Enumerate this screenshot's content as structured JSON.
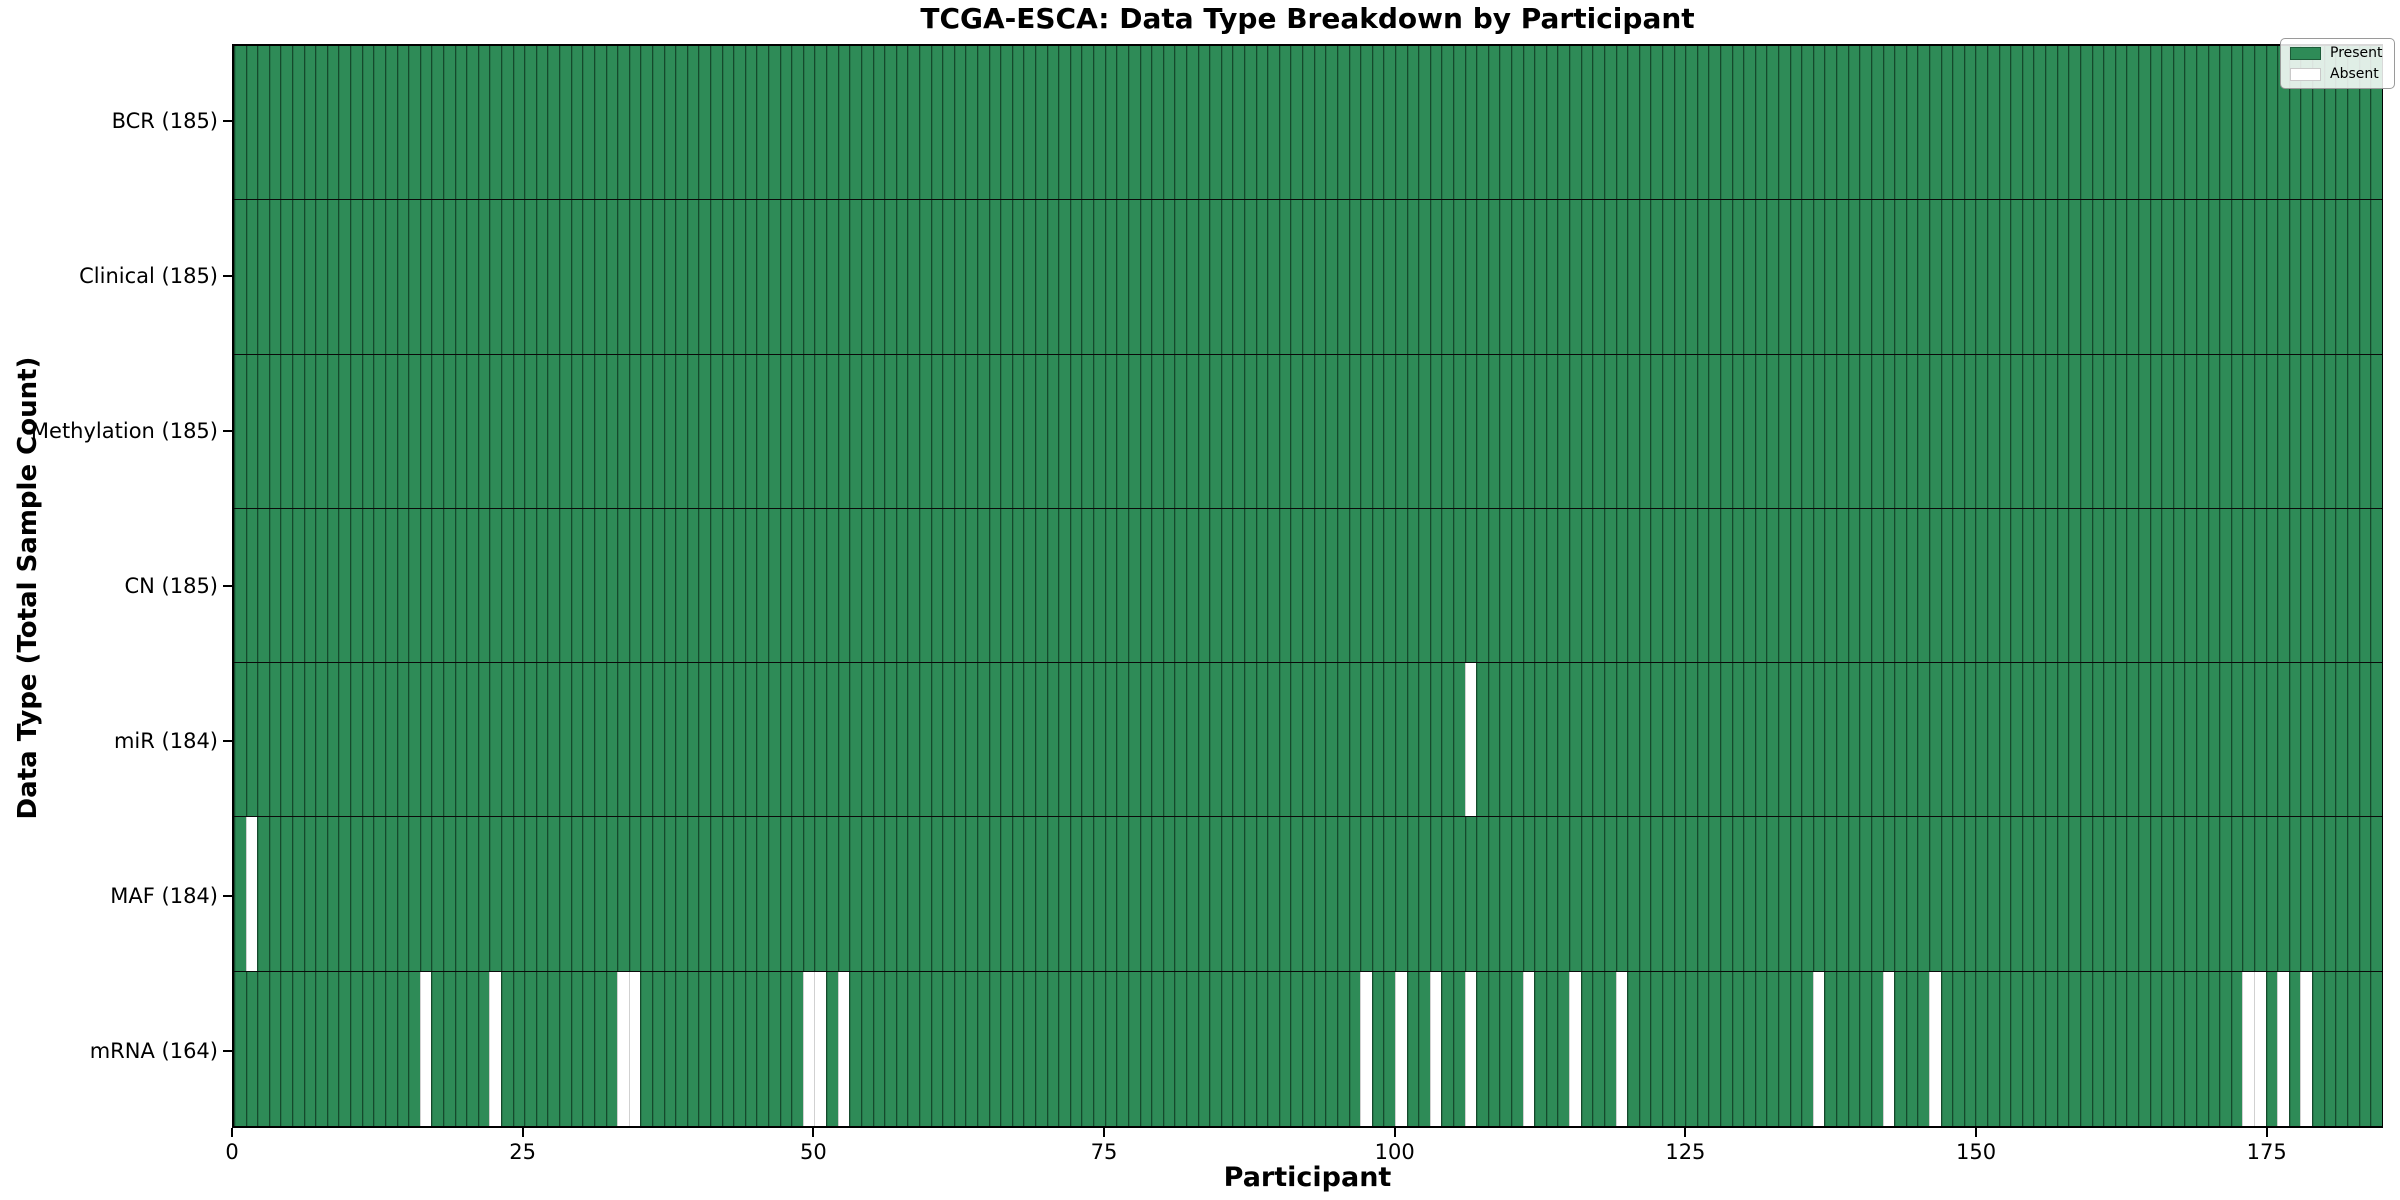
{
  "title": "TCGA-ESCA: Data Type Breakdown by Participant",
  "x_axis_label": "Participant",
  "y_axis_label": "Data Type (Total Sample Count)",
  "legend": {
    "present_label": "Present",
    "absent_label": "Absent"
  },
  "colors": {
    "present": "#2e8b57",
    "absent": "#ffffff"
  },
  "chart_data": {
    "type": "heatmap",
    "x_label": "Participant",
    "y_label": "Data Type (Total Sample Count)",
    "n_participants": 185,
    "x_ticks": [
      0,
      25,
      50,
      75,
      100,
      125,
      150,
      175
    ],
    "legend_position": "upper right",
    "rows": [
      {
        "label": "BCR (185)",
        "name": "BCR",
        "present_count": 185,
        "absent_participants": []
      },
      {
        "label": "Clinical (185)",
        "name": "Clinical",
        "present_count": 185,
        "absent_participants": []
      },
      {
        "label": "Methylation (185)",
        "name": "Methylation",
        "present_count": 185,
        "absent_participants": []
      },
      {
        "label": "CN (185)",
        "name": "CN",
        "present_count": 185,
        "absent_participants": []
      },
      {
        "label": "miR (184)",
        "name": "miR",
        "present_count": 184,
        "absent_participants": [
          106
        ]
      },
      {
        "label": "MAF (184)",
        "name": "MAF",
        "present_count": 184,
        "absent_participants": [
          1
        ]
      },
      {
        "label": "mRNA (164)",
        "name": "mRNA",
        "present_count": 164,
        "absent_participants": [
          16,
          22,
          33,
          34,
          49,
          50,
          52,
          97,
          100,
          103,
          106,
          111,
          115,
          119,
          136,
          142,
          146,
          173,
          174,
          176,
          178
        ]
      }
    ]
  }
}
